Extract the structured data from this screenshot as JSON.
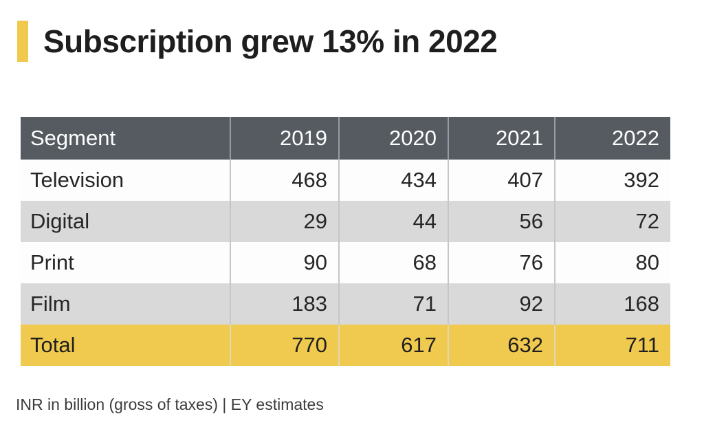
{
  "title": {
    "text": "Subscription grew 13% in 2022"
  },
  "table": {
    "columns": [
      "Segment",
      "2019",
      "2020",
      "2021",
      "2022"
    ],
    "rows": [
      {
        "label": "Television",
        "values": [
          "468",
          "434",
          "407",
          "392"
        ]
      },
      {
        "label": "Digital",
        "values": [
          "29",
          "44",
          "56",
          "72"
        ]
      },
      {
        "label": "Print",
        "values": [
          "90",
          "68",
          "76",
          "80"
        ]
      },
      {
        "label": "Film",
        "values": [
          "183",
          "71",
          "92",
          "168"
        ]
      },
      {
        "label": "Total",
        "values": [
          "770",
          "617",
          "632",
          "711"
        ]
      }
    ]
  },
  "footnote": "INR in billion (gross of taxes) | EY estimates",
  "colors": {
    "accent_yellow": "#F0C94F",
    "header_bg": "#555B61",
    "header_text": "#FFFFFF",
    "alt_row_gray": "#D9D9D9",
    "total_row_yellow": "#F0C94F",
    "body_text": "#262626"
  },
  "chart_data": {
    "type": "table",
    "title": "Subscription grew 13% in 2022",
    "categories": [
      "2019",
      "2020",
      "2021",
      "2022"
    ],
    "series": [
      {
        "name": "Television",
        "values": [
          468,
          434,
          407,
          392
        ]
      },
      {
        "name": "Digital",
        "values": [
          29,
          44,
          56,
          72
        ]
      },
      {
        "name": "Print",
        "values": [
          90,
          68,
          76,
          80
        ]
      },
      {
        "name": "Film",
        "values": [
          183,
          71,
          92,
          168
        ]
      },
      {
        "name": "Total",
        "values": [
          770,
          617,
          632,
          711
        ]
      }
    ],
    "units": "INR in billion (gross of taxes)",
    "source": "EY estimates"
  }
}
